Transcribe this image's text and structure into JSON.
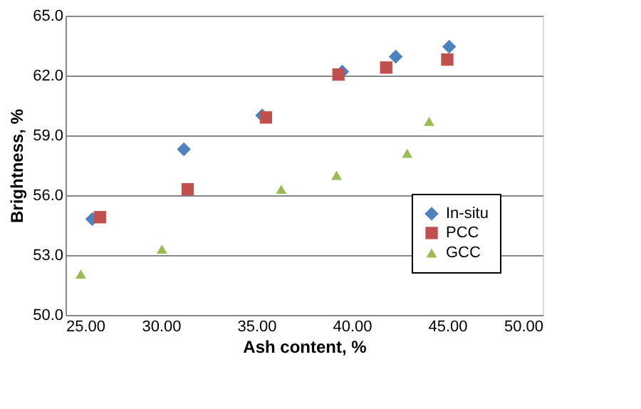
{
  "chart_data": {
    "type": "scatter",
    "xlabel": "Ash content, %",
    "ylabel": "Brightness, %",
    "xlim": [
      25,
      50
    ],
    "ylim": [
      50,
      65
    ],
    "xticks": [
      {
        "value": 25,
        "label": "25.00"
      },
      {
        "value": 30,
        "label": "30.00"
      },
      {
        "value": 35,
        "label": "35.00"
      },
      {
        "value": 40,
        "label": "40.00"
      },
      {
        "value": 45,
        "label": "45.00"
      },
      {
        "value": 50,
        "label": "50.00"
      }
    ],
    "yticks": [
      {
        "value": 50,
        "label": "50.0"
      },
      {
        "value": 53,
        "label": "53.0"
      },
      {
        "value": 56,
        "label": "56.0"
      },
      {
        "value": 59,
        "label": "59.0"
      },
      {
        "value": 62,
        "label": "62.0"
      },
      {
        "value": 65,
        "label": "65.0"
      }
    ],
    "grid": "y",
    "legend": "bottom right",
    "series": [
      {
        "name": "In-situ",
        "color": "#4f81bd",
        "marker": "diamond",
        "x": [
          26.4,
          31.2,
          35.3,
          39.5,
          42.3,
          45.1
        ],
        "values": [
          54.8,
          58.3,
          60.0,
          62.2,
          62.95,
          63.45
        ]
      },
      {
        "name": "PCC",
        "color": "#c0504d",
        "marker": "square",
        "x": [
          26.8,
          31.4,
          35.5,
          39.3,
          41.8,
          45.0
        ],
        "values": [
          54.9,
          56.3,
          59.9,
          62.05,
          62.4,
          62.8
        ]
      },
      {
        "name": "GCC",
        "color": "#9bbb59",
        "marker": "triangle",
        "x": [
          25.8,
          30.05,
          36.3,
          39.2,
          42.9,
          44.05
        ],
        "values": [
          52.05,
          53.3,
          56.3,
          57.0,
          58.1,
          59.7
        ]
      }
    ]
  }
}
